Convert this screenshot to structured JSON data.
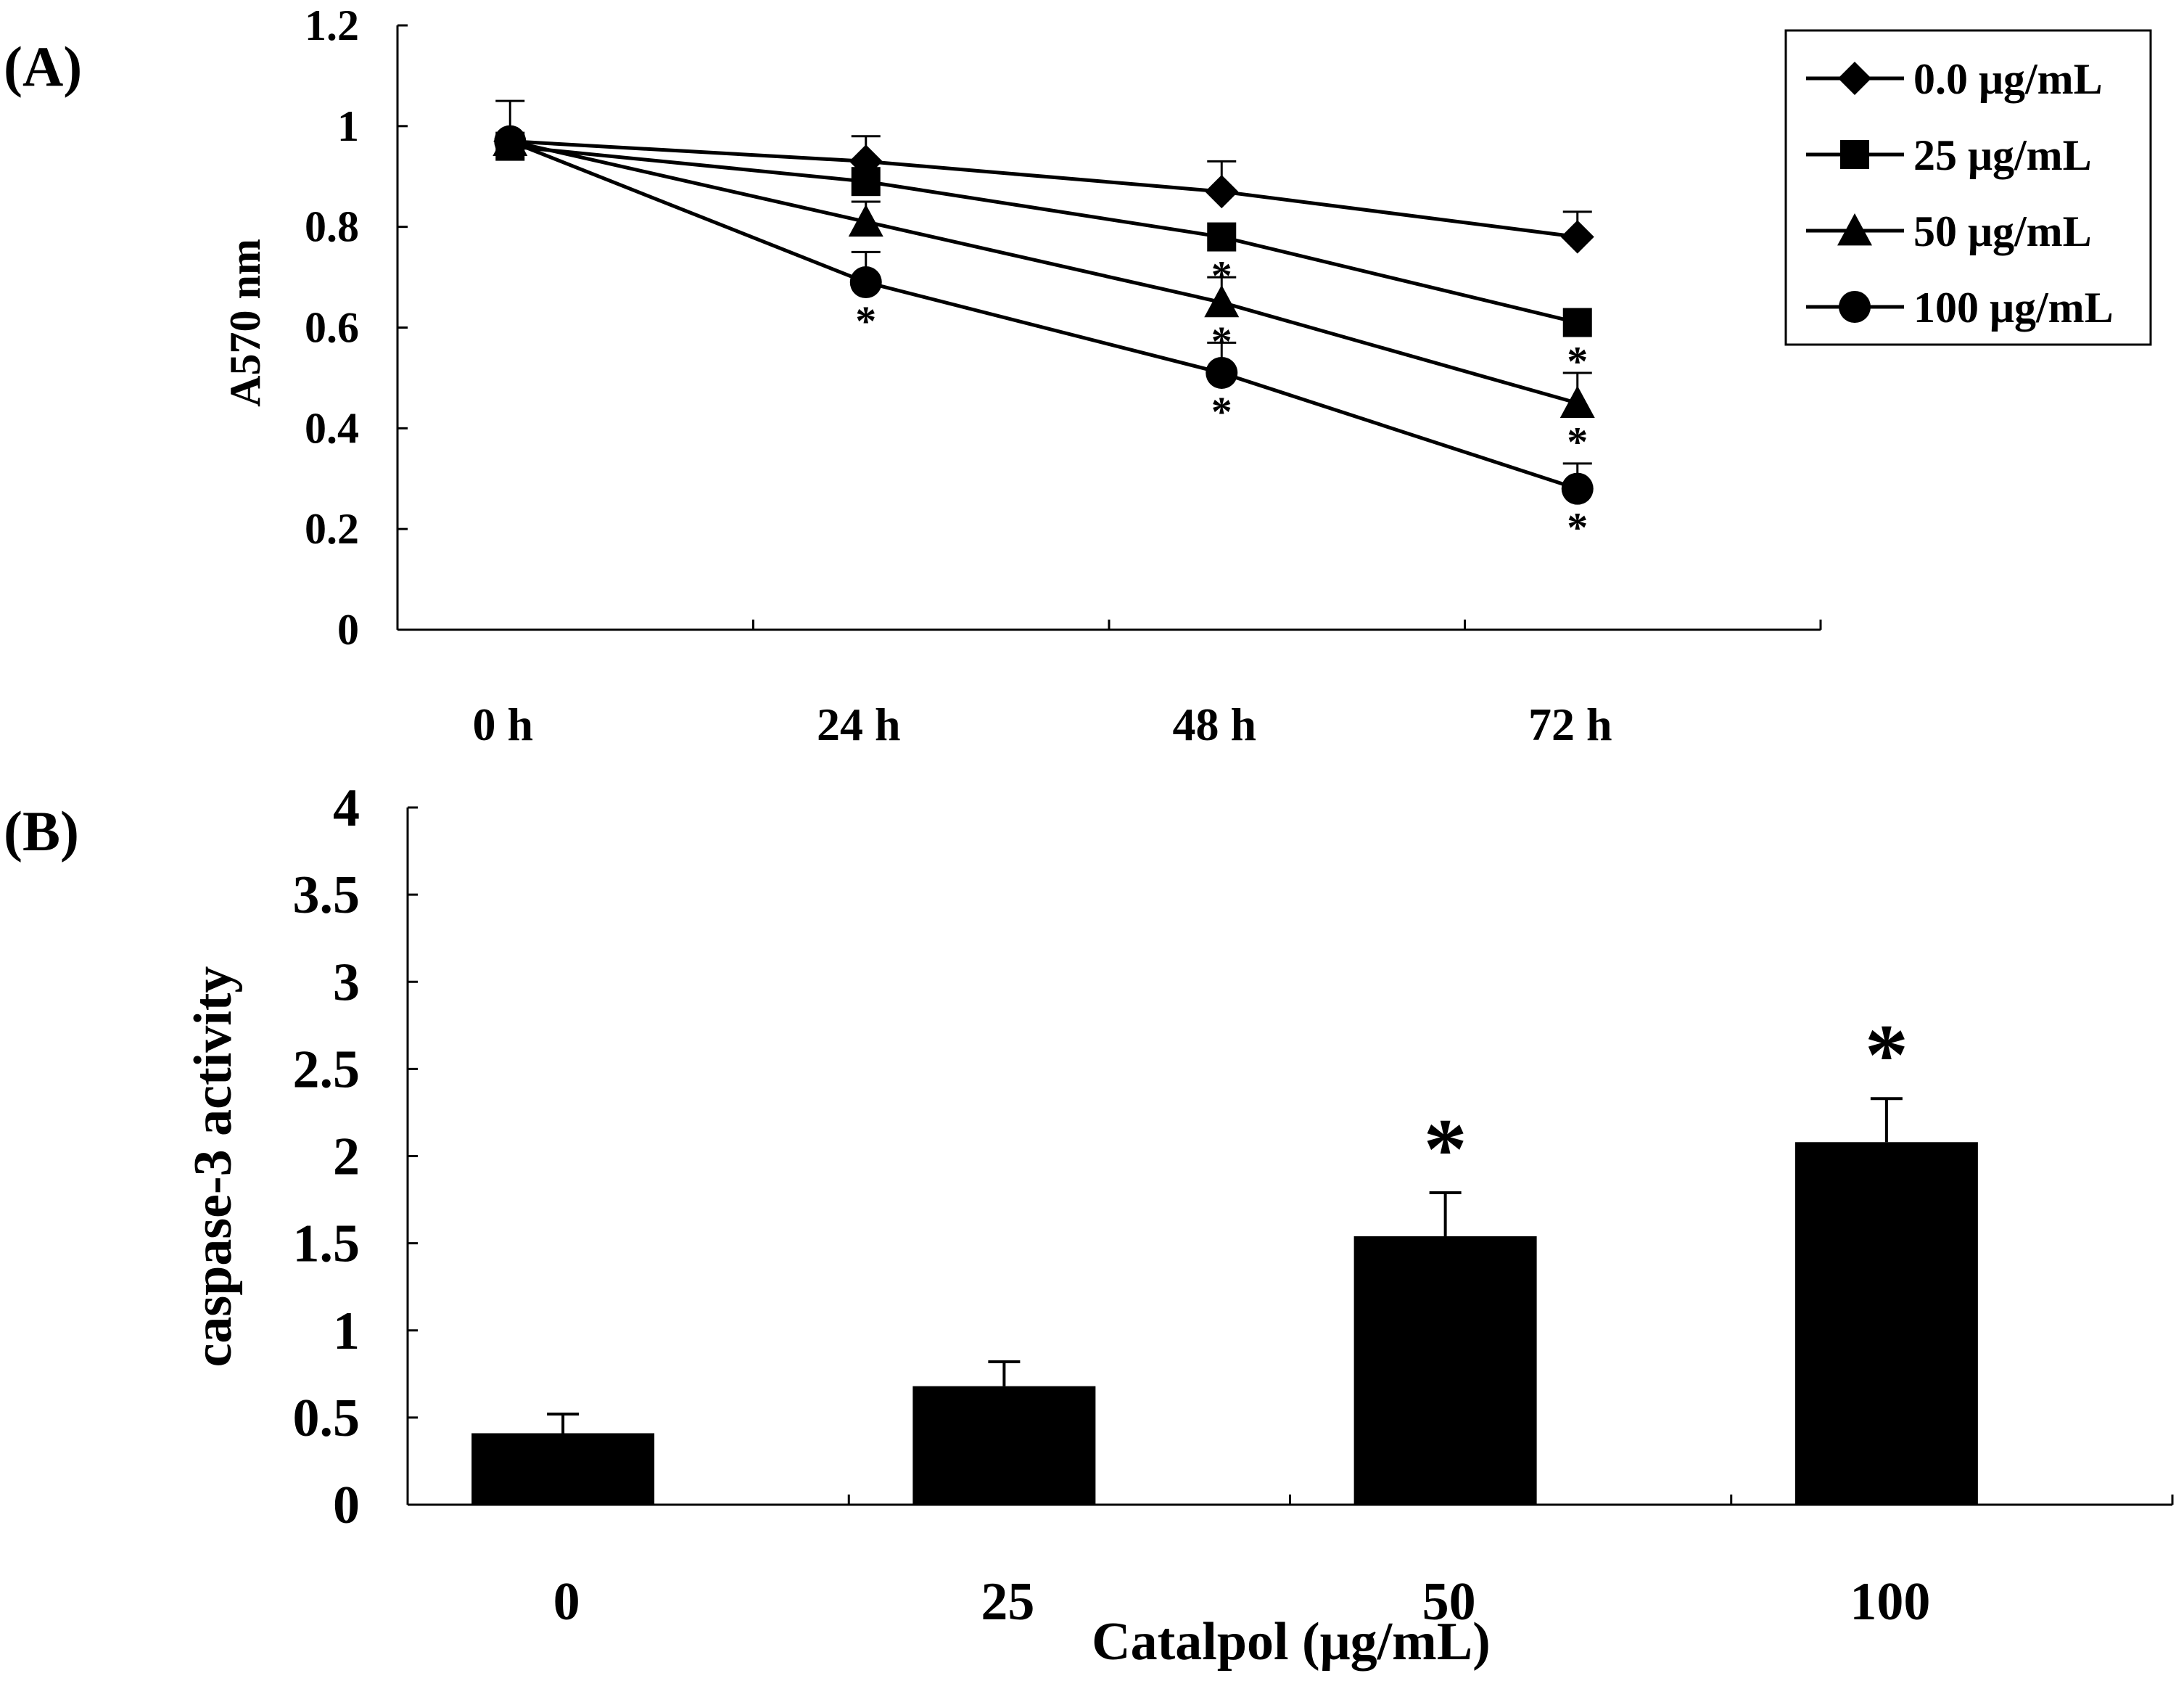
{
  "chart_data": [
    {
      "panel_label": "(A)",
      "type": "line",
      "title": "",
      "xlabel": "",
      "ylabel": "A570 nm",
      "categories": [
        "0 h",
        "24 h",
        "48 h",
        "72 h"
      ],
      "ylim": [
        0,
        1.2
      ],
      "yticks": [
        "0",
        "0.2",
        "0.4",
        "0.6",
        "0.8",
        "1",
        "1.2"
      ],
      "grid": false,
      "legend_position": "top-right",
      "series": [
        {
          "name": "0.0 μg/mL",
          "marker": "diamond",
          "values": [
            0.97,
            0.93,
            0.87,
            0.78
          ],
          "errors": [
            0.08,
            0.05,
            0.06,
            0.05
          ],
          "significant": [
            false,
            false,
            false,
            false
          ]
        },
        {
          "name": "25 μg/mL",
          "marker": "square",
          "values": [
            0.96,
            0.89,
            0.78,
            0.61
          ],
          "errors": [
            0.0,
            0.0,
            0.0,
            0.0
          ],
          "significant": [
            false,
            false,
            true,
            true
          ]
        },
        {
          "name": "50 μg/mL",
          "marker": "triangle",
          "values": [
            0.97,
            0.81,
            0.65,
            0.45
          ],
          "errors": [
            0.0,
            0.04,
            0.05,
            0.06
          ],
          "significant": [
            false,
            false,
            true,
            true
          ]
        },
        {
          "name": "100 μg/mL",
          "marker": "circle",
          "values": [
            0.97,
            0.69,
            0.51,
            0.28
          ],
          "errors": [
            0.0,
            0.06,
            0.06,
            0.05
          ],
          "significant": [
            false,
            true,
            true,
            true
          ]
        }
      ],
      "significance_marker": "*"
    },
    {
      "panel_label": "(B)",
      "type": "bar",
      "title": "",
      "xlabel": "Catalpol (μg/mL)",
      "ylabel": "caspase-3 activity",
      "categories": [
        "0",
        "25",
        "50",
        "100"
      ],
      "values": [
        0.41,
        0.68,
        1.54,
        2.08
      ],
      "errors": [
        0.11,
        0.14,
        0.25,
        0.25
      ],
      "significant": [
        false,
        false,
        true,
        true
      ],
      "ylim": [
        0,
        4
      ],
      "yticks": [
        "0",
        "0.5",
        "1",
        "1.5",
        "2",
        "2.5",
        "3",
        "3.5",
        "4"
      ],
      "grid": false,
      "significance_marker": "*",
      "bar_color": "#000000"
    }
  ]
}
